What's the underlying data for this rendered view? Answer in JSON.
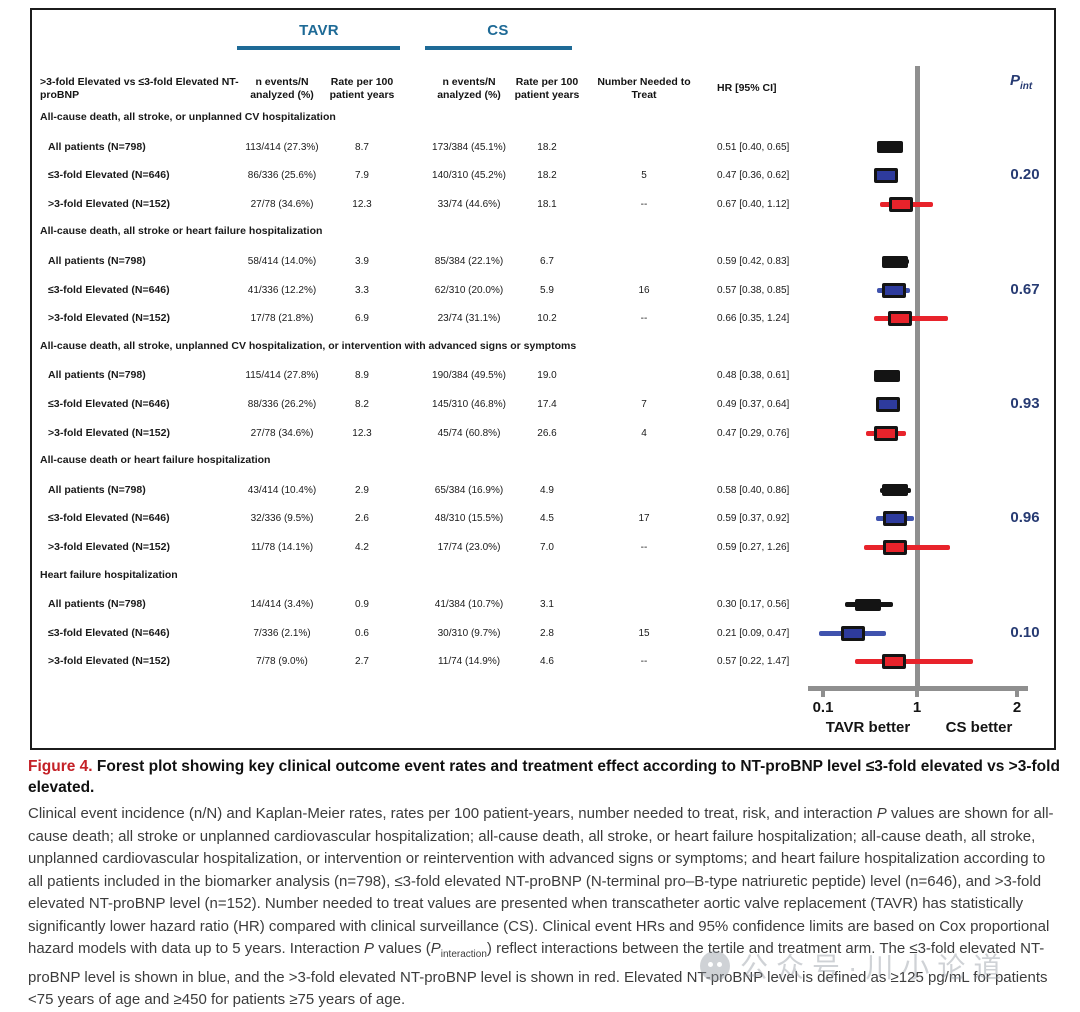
{
  "figure": {
    "arm_headers": [
      "TAVR",
      "CS"
    ],
    "columns": {
      "stub": ">3-fold Elevated vs ≤3-fold Elevated NT-proBNP",
      "n_events": "n events/N analyzed (%)",
      "rate": "Rate per 100 patient years",
      "nnt": "Number Needed to Treat",
      "hr": "HR [95% CI]",
      "pint_p": "P",
      "pint_sub": "int"
    },
    "colors": {
      "arm_header_teal": "#1e6a96",
      "all_marker_black": "#141414",
      "low_marker_fill_blue": "#2e3b9d",
      "low_ci_blue": "#4053ae",
      "high_marker_red": "#e8232b",
      "p_value_navy": "#263a72",
      "figure_label_red": "#c42127",
      "axis_gray": "#8f8f8f"
    }
  },
  "chart_data": {
    "type": "scatter",
    "subtype": "forest-plot",
    "x_axis": {
      "scale": "log",
      "tick_labels": [
        "0.1",
        "1",
        "2"
      ],
      "tick_values": [
        0.1,
        1,
        2
      ],
      "reference_value": 1,
      "left_label": "TAVR better",
      "right_label": "CS better"
    },
    "series_legend": {
      "all": "All patients (black)",
      "low": "≤3-fold elevated NT-proBNP (blue)",
      "high": ">3-fold elevated NT-proBNP (red)"
    },
    "groups": [
      {
        "outcome": "All-cause death, all stroke, or unplanned CV hospitalization",
        "p_interaction": "0.20",
        "rows": [
          {
            "label": "All patients (N=798)",
            "series": "all",
            "tavr_events": "113/414 (27.3%)",
            "tavr_rate": "8.7",
            "cs_events": "173/384 (45.1%)",
            "cs_rate": "18.2",
            "nnt": "",
            "hr_text": "0.51 [0.40, 0.65]",
            "hr": 0.51,
            "lo": 0.4,
            "hi": 0.65
          },
          {
            "label": "≤3-fold Elevated (N=646)",
            "series": "low",
            "tavr_events": "86/336 (25.6%)",
            "tavr_rate": "7.9",
            "cs_events": "140/310 (45.2%)",
            "cs_rate": "18.2",
            "nnt": "5",
            "hr_text": "0.47 [0.36, 0.62]",
            "hr": 0.47,
            "lo": 0.36,
            "hi": 0.62
          },
          {
            "label": ">3-fold Elevated (N=152)",
            "series": "high",
            "tavr_events": "27/78 (34.6%)",
            "tavr_rate": "12.3",
            "cs_events": "33/74 (44.6%)",
            "cs_rate": "18.1",
            "nnt": "--",
            "hr_text": "0.67 [0.40, 1.12]",
            "hr": 0.67,
            "lo": 0.4,
            "hi": 1.12
          }
        ]
      },
      {
        "outcome": "All-cause death, all stroke or heart failure hospitalization",
        "p_interaction": "0.67",
        "rows": [
          {
            "label": "All patients (N=798)",
            "series": "all",
            "tavr_events": "58/414 (14.0%)",
            "tavr_rate": "3.9",
            "cs_events": "85/384 (22.1%)",
            "cs_rate": "6.7",
            "nnt": "",
            "hr_text": "0.59 [0.42, 0.83]",
            "hr": 0.59,
            "lo": 0.42,
            "hi": 0.83
          },
          {
            "label": "≤3-fold Elevated (N=646)",
            "series": "low",
            "tavr_events": "41/336 (12.2%)",
            "tavr_rate": "3.3",
            "cs_events": "62/310 (20.0%)",
            "cs_rate": "5.9",
            "nnt": "16",
            "hr_text": "0.57 [0.38, 0.85]",
            "hr": 0.57,
            "lo": 0.38,
            "hi": 0.85
          },
          {
            "label": ">3-fold Elevated (N=152)",
            "series": "high",
            "tavr_events": "17/78 (21.8%)",
            "tavr_rate": "6.9",
            "cs_events": "23/74 (31.1%)",
            "cs_rate": "10.2",
            "nnt": "--",
            "hr_text": "0.66 [0.35, 1.24]",
            "hr": 0.66,
            "lo": 0.35,
            "hi": 1.24
          }
        ]
      },
      {
        "outcome": "All-cause death, all stroke, unplanned CV hospitalization, or intervention with advanced signs or symptoms",
        "p_interaction": "0.93",
        "rows": [
          {
            "label": "All patients (N=798)",
            "series": "all",
            "tavr_events": "115/414 (27.8%)",
            "tavr_rate": "8.9",
            "cs_events": "190/384 (49.5%)",
            "cs_rate": "19.0",
            "nnt": "",
            "hr_text": "0.48 [0.38, 0.61]",
            "hr": 0.48,
            "lo": 0.38,
            "hi": 0.61
          },
          {
            "label": "≤3-fold Elevated (N=646)",
            "series": "low",
            "tavr_events": "88/336 (26.2%)",
            "tavr_rate": "8.2",
            "cs_events": "145/310 (46.8%)",
            "cs_rate": "17.4",
            "nnt": "7",
            "hr_text": "0.49 [0.37, 0.64]",
            "hr": 0.49,
            "lo": 0.37,
            "hi": 0.64
          },
          {
            "label": ">3-fold Elevated (N=152)",
            "series": "high",
            "tavr_events": "27/78 (34.6%)",
            "tavr_rate": "12.3",
            "cs_events": "45/74 (60.8%)",
            "cs_rate": "26.6",
            "nnt": "4",
            "hr_text": "0.47 [0.29, 0.76]",
            "hr": 0.47,
            "lo": 0.29,
            "hi": 0.76
          }
        ]
      },
      {
        "outcome": "All-cause death or heart failure hospitalization",
        "p_interaction": "0.96",
        "rows": [
          {
            "label": "All patients (N=798)",
            "series": "all",
            "tavr_events": "43/414 (10.4%)",
            "tavr_rate": "2.9",
            "cs_events": "65/384 (16.9%)",
            "cs_rate": "4.9",
            "nnt": "",
            "hr_text": "0.58 [0.40, 0.86]",
            "hr": 0.58,
            "lo": 0.4,
            "hi": 0.86
          },
          {
            "label": "≤3-fold Elevated (N=646)",
            "series": "low",
            "tavr_events": "32/336 (9.5%)",
            "tavr_rate": "2.6",
            "cs_events": "48/310 (15.5%)",
            "cs_rate": "4.5",
            "nnt": "17",
            "hr_text": "0.59 [0.37, 0.92]",
            "hr": 0.59,
            "lo": 0.37,
            "hi": 0.92
          },
          {
            "label": ">3-fold Elevated (N=152)",
            "series": "high",
            "tavr_events": "11/78 (14.1%)",
            "tavr_rate": "4.2",
            "cs_events": "17/74 (23.0%)",
            "cs_rate": "7.0",
            "nnt": "--",
            "hr_text": "0.59 [0.27, 1.26]",
            "hr": 0.59,
            "lo": 0.27,
            "hi": 1.26
          }
        ]
      },
      {
        "outcome": "Heart failure hospitalization",
        "p_interaction": "0.10",
        "rows": [
          {
            "label": "All patients (N=798)",
            "series": "all",
            "tavr_events": "14/414 (3.4%)",
            "tavr_rate": "0.9",
            "cs_events": "41/384 (10.7%)",
            "cs_rate": "3.1",
            "nnt": "",
            "hr_text": "0.30 [0.17, 0.56]",
            "hr": 0.3,
            "lo": 0.17,
            "hi": 0.56
          },
          {
            "label": "≤3-fold Elevated (N=646)",
            "series": "low",
            "tavr_events": "7/336 (2.1%)",
            "tavr_rate": "0.6",
            "cs_events": "30/310 (9.7%)",
            "cs_rate": "2.8",
            "nnt": "15",
            "hr_text": "0.21 [0.09, 0.47]",
            "hr": 0.21,
            "lo": 0.09,
            "hi": 0.47
          },
          {
            "label": ">3-fold Elevated (N=152)",
            "series": "high",
            "tavr_events": "7/78 (9.0%)",
            "tavr_rate": "2.7",
            "cs_events": "11/74 (14.9%)",
            "cs_rate": "4.6",
            "nnt": "--",
            "hr_text": "0.57 [0.22, 1.47]",
            "hr": 0.57,
            "lo": 0.22,
            "hi": 1.47
          }
        ]
      }
    ]
  },
  "caption": {
    "label": "Figure 4.",
    "title": "Forest plot showing key clinical outcome event rates and treatment effect according to NT-proBNP level ≤3-fold elevated vs >3-fold elevated.",
    "body": [
      {
        "t": "Clinical event incidence (n/N) and Kaplan-Meier rates, rates per 100 patient-years, number needed to treat, risk, and interaction "
      },
      {
        "t": "P",
        "i": 1
      },
      {
        "t": " values are shown for all-cause death; all stroke or unplanned cardiovascular hospitalization; all-cause death, all stroke, or heart failure hospitalization; all-cause death, all stroke, unplanned cardiovascular hospitalization, or intervention or reintervention with advanced signs or symptoms; and heart failure hospitalization according to all patients included in the biomarker analysis (n=798), ≤3-fold elevated NT-proBNP (N-terminal pro–B-type natriuretic peptide) level (n=646), and >3-fold elevated NT-proBNP level (n=152). Number needed to treat values are presented when transcatheter aortic valve replacement (TAVR) has statistically significantly lower hazard ratio (HR) compared with clinical surveillance (CS). Clinical event HRs and 95% confidence limits are based on Cox proportional hazard models with data up to 5 years. Interaction "
      },
      {
        "t": "P",
        "i": 1
      },
      {
        "t": " values ("
      },
      {
        "t": "P",
        "i": 1
      },
      {
        "t": "interaction",
        "sub": 1
      },
      {
        "t": ") reflect interactions between the tertile and treatment arm. The ≤3-fold elevated NT-proBNP level is shown in blue, and the >3-fold elevated NT-proBNP level is shown in red. Elevated NT-proBNP level is defined as ≥125 pg/mL for patients <75 years of age and ≥450 for patients ≥75 years of age."
      }
    ]
  },
  "watermark": {
    "text": "公众号·川小论道"
  }
}
